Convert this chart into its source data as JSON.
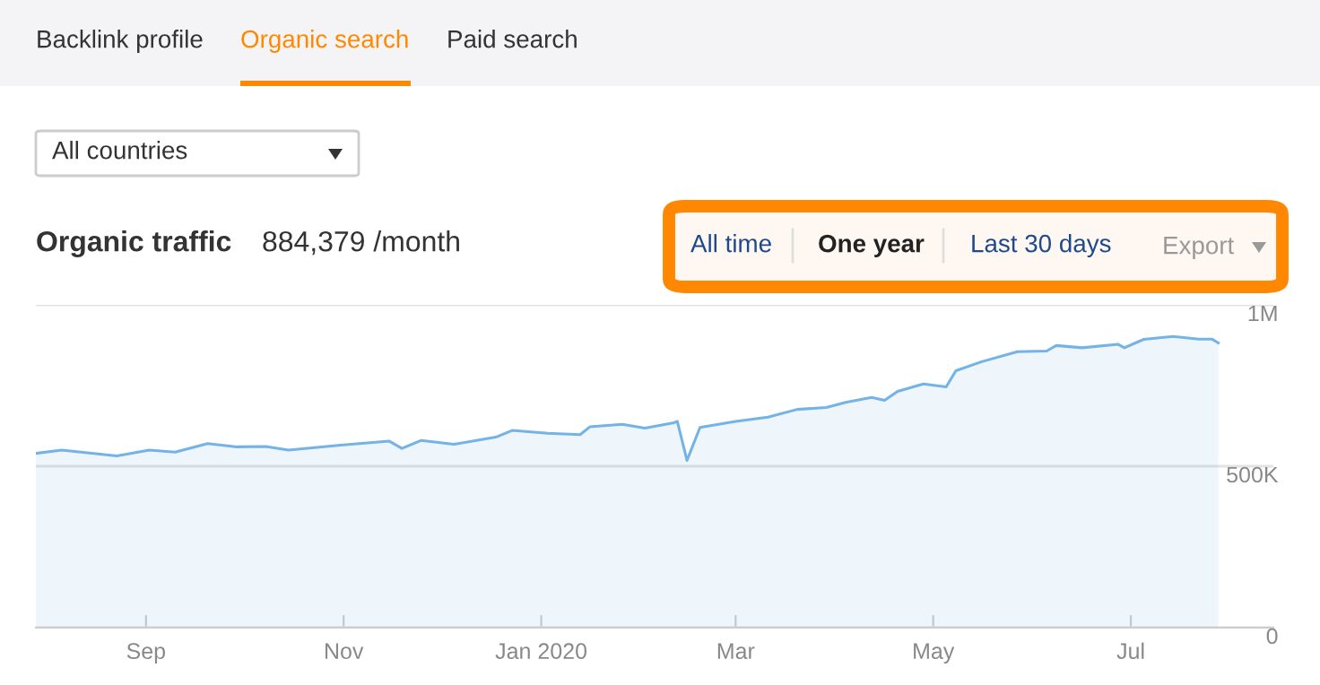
{
  "chart_data": {
    "type": "area",
    "title": "Organic traffic",
    "subtitle": "884,379 /month",
    "annotations": [
      "Backlink profile",
      "Organic search",
      "Paid search",
      "All countries",
      "All time",
      "One year",
      "Last 30 days",
      "Export"
    ],
    "x": [
      "2019-07-29",
      "2019-08-06",
      "2019-08-23",
      "2019-09-02",
      "2019-09-10",
      "2019-09-20",
      "2019-09-29",
      "2019-10-08",
      "2019-10-15",
      "2019-10-31",
      "2019-11-15",
      "2019-11-19",
      "2019-11-25",
      "2019-12-05",
      "2019-12-18",
      "2019-12-23",
      "2020-01-03",
      "2020-01-13",
      "2020-01-16",
      "2020-01-26",
      "2020-02-02",
      "2020-02-11",
      "2020-02-12",
      "2020-02-15",
      "2020-02-19",
      "2020-03-01",
      "2020-03-11",
      "2020-03-20",
      "2020-03-29",
      "2020-04-04",
      "2020-04-12",
      "2020-04-16",
      "2020-04-20",
      "2020-04-28",
      "2020-05-05",
      "2020-05-08",
      "2020-05-16",
      "2020-05-27",
      "2020-06-05",
      "2020-06-08",
      "2020-06-16",
      "2020-06-27",
      "2020-06-29",
      "2020-07-05",
      "2020-07-14",
      "2020-07-22",
      "2020-07-26",
      "2020-07-28"
    ],
    "series": [
      {
        "color": "#73b3e7",
        "values": [
          540000,
          550000,
          532000,
          550000,
          544000,
          570000,
          560000,
          561000,
          550000,
          565000,
          578000,
          555000,
          580000,
          568000,
          590000,
          611000,
          602000,
          598000,
          622000,
          630000,
          618000,
          635000,
          639000,
          518000,
          620000,
          639000,
          652000,
          676000,
          682000,
          698000,
          713000,
          704000,
          732000,
          755000,
          746000,
          796000,
          824000,
          855000,
          857000,
          874000,
          867000,
          878000,
          867000,
          893000,
          902000,
          894000,
          894000,
          882000
        ]
      }
    ],
    "xlim": [
      "2019-07-29",
      "2020-08-14"
    ],
    "xticks": [
      {
        "value": "2019-09-01",
        "label": "Sep"
      },
      {
        "value": "2019-11-01",
        "label": "Nov"
      },
      {
        "value": "2020-01-01",
        "label": "Jan 2020"
      },
      {
        "value": "2020-03-01",
        "label": "Mar"
      },
      {
        "value": "2020-05-01",
        "label": "May"
      },
      {
        "value": "2020-07-01",
        "label": "Jul"
      }
    ],
    "ylim": [
      0,
      1000000
    ],
    "yticks": [
      0,
      {
        "value": 500000,
        "label": "500K"
      },
      {
        "value": 1000000,
        "label": "1M"
      }
    ],
    "grid": "y",
    "legend": false
  }
}
